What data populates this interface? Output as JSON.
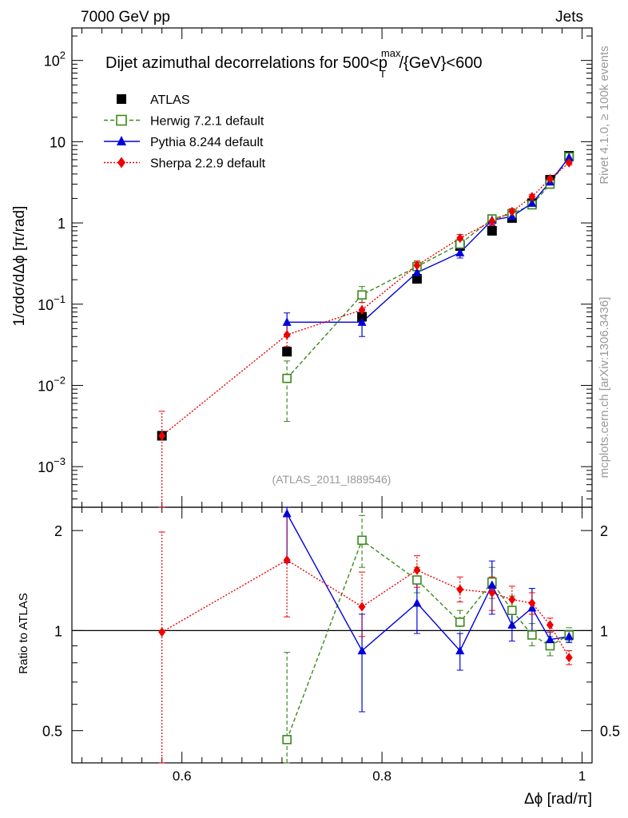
{
  "chart_data": {
    "type": "line",
    "top_labels": {
      "left": "7000 GeV pp",
      "right": "Jets"
    },
    "title": "Dijet azimuthal decorrelations for 500<p",
    "title_sup": "max",
    "title_sub": "T",
    "title_rest": "/{GeV}<600",
    "side_label_upper": "Rivet 4.1.0, ≥ 100k events",
    "side_label_lower": "mcplots.cern.ch [arXiv:1306.3436]",
    "analysis_id": "(ATLAS_2011_I889546)",
    "xlabel": "Δϕ [rad/π]",
    "ylabel": "1/σdσ/dΔϕ [π/rad]",
    "ratio_ylabel": "Ratio to ATLAS",
    "xlim": [
      0.49,
      1.01
    ],
    "ylim_log10": [
      -3.5,
      2.4
    ],
    "ratio_ylim": [
      0.4,
      2.35
    ],
    "x_ticks": [
      {
        "v": 0.6,
        "label": "0.6"
      },
      {
        "v": 0.8,
        "label": "0.8"
      },
      {
        "v": 1.0,
        "label": "1"
      }
    ],
    "y_ticks": [
      {
        "exp": -3,
        "label": "10",
        "sup": "−3"
      },
      {
        "exp": -2,
        "label": "10",
        "sup": "−2"
      },
      {
        "exp": -1,
        "label": "10",
        "sup": "−1"
      },
      {
        "exp": 0,
        "label": "1",
        "sup": ""
      },
      {
        "exp": 1,
        "label": "10",
        "sup": ""
      },
      {
        "exp": 2,
        "label": "10",
        "sup": "2"
      }
    ],
    "ratio_ticks": [
      {
        "v": 0.5,
        "label": "0.5"
      },
      {
        "v": 1,
        "label": "1"
      },
      {
        "v": 2,
        "label": "2"
      }
    ],
    "data": {
      "name": "ATLAS",
      "color": "#000000",
      "x": [
        0.58,
        0.705,
        0.78,
        0.835,
        0.878,
        0.91,
        0.93,
        0.95,
        0.968,
        0.987
      ],
      "y": [
        0.0024,
        0.026,
        0.07,
        0.205,
        0.52,
        0.8,
        1.15,
        1.75,
        3.4,
        6.7
      ]
    },
    "series": [
      {
        "name": "Herwig 7.2.1 default",
        "color": "#3a8a1a",
        "marker": "open-square",
        "dash": "5,3",
        "x": [
          0.705,
          0.78,
          0.835,
          0.878,
          0.91,
          0.93,
          0.95,
          0.968,
          0.987
        ],
        "y": [
          0.0122,
          0.13,
          0.29,
          0.55,
          1.12,
          1.3,
          1.67,
          3.0,
          6.5
        ],
        "err_lo": [
          0.0036,
          0.105,
          0.24,
          0.48,
          1.0,
          1.18,
          1.58,
          2.85,
          6.2
        ],
        "err_hi": [
          0.02,
          0.165,
          0.33,
          0.62,
          1.24,
          1.42,
          1.78,
          3.15,
          6.8
        ],
        "ratio": [
          0.47,
          1.87,
          1.42,
          1.06,
          1.4,
          1.15,
          0.97,
          0.9,
          0.97
        ],
        "ratio_lo": [
          0.38,
          1.55,
          1.3,
          0.98,
          1.25,
          1.03,
          0.9,
          0.84,
          0.93
        ],
        "ratio_hi": [
          0.86,
          2.22,
          1.55,
          1.15,
          1.55,
          1.27,
          1.05,
          0.96,
          1.02
        ]
      },
      {
        "name": "Pythia 8.244 default",
        "color": "#0000dd",
        "marker": "filled-triangle",
        "dash": "",
        "x": [
          0.705,
          0.78,
          0.835,
          0.878,
          0.91,
          0.93,
          0.95,
          0.968,
          0.987
        ],
        "y": [
          0.06,
          0.06,
          0.245,
          0.43,
          1.08,
          1.2,
          1.75,
          3.2,
          6.4
        ],
        "err_lo": [
          0.04,
          0.04,
          0.2,
          0.37,
          0.95,
          1.08,
          1.6,
          3.0,
          6.1
        ],
        "err_hi": [
          0.078,
          0.078,
          0.29,
          0.5,
          1.21,
          1.32,
          1.9,
          3.4,
          6.7
        ],
        "ratio": [
          2.25,
          0.87,
          1.21,
          0.87,
          1.37,
          1.04,
          1.17,
          0.94,
          0.96
        ],
        "ratio_lo": [
          1.6,
          0.57,
          0.98,
          0.76,
          1.12,
          0.93,
          1.0,
          0.89,
          0.92
        ],
        "ratio_hi": [
          2.35,
          1.12,
          1.45,
          0.98,
          1.62,
          1.15,
          1.34,
          0.99,
          1.0
        ]
      },
      {
        "name": "Sherpa 2.2.9 default",
        "color": "#ee0000",
        "marker": "filled-diamond",
        "dash": "2,2",
        "x": [
          0.58,
          0.705,
          0.78,
          0.835,
          0.878,
          0.91,
          0.93,
          0.95,
          0.968,
          0.987
        ],
        "y": [
          0.0024,
          0.042,
          0.085,
          0.3,
          0.65,
          1.05,
          1.38,
          2.1,
          3.5,
          5.5
        ],
        "err_lo": [
          0.0001,
          0.03,
          0.065,
          0.26,
          0.58,
          0.93,
          1.25,
          1.95,
          3.3,
          5.2
        ],
        "err_hi": [
          0.0048,
          0.055,
          0.105,
          0.34,
          0.72,
          1.17,
          1.5,
          2.25,
          3.7,
          5.8
        ],
        "ratio": [
          0.99,
          1.63,
          1.18,
          1.52,
          1.33,
          1.3,
          1.24,
          1.21,
          1.04,
          0.83
        ],
        "ratio_lo": [
          0.38,
          1.1,
          0.96,
          1.35,
          1.22,
          1.15,
          1.12,
          1.12,
          0.99,
          0.79
        ],
        "ratio_hi": [
          1.98,
          2.2,
          1.5,
          1.68,
          1.45,
          1.45,
          1.36,
          1.3,
          1.09,
          0.87
        ]
      }
    ]
  }
}
